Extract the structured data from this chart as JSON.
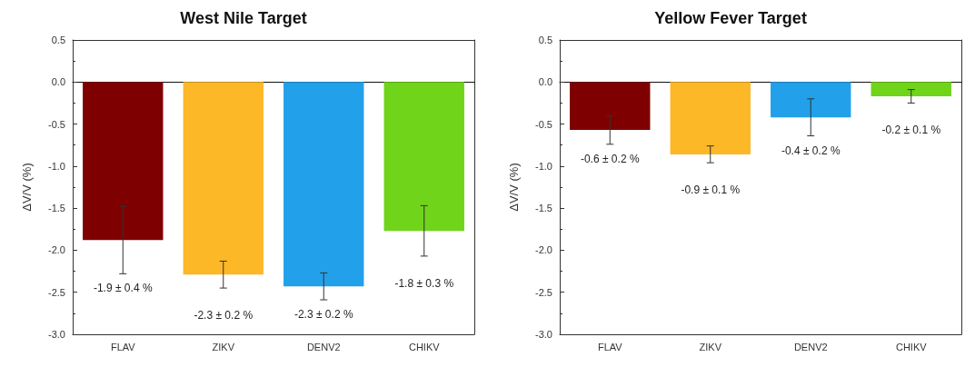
{
  "chart_data": [
    {
      "type": "bar",
      "title": "West Nile Target",
      "ylabel": "ΔV/V (%)",
      "categories": [
        "FLAV",
        "ZIKV",
        "DENV2",
        "CHIKV"
      ],
      "values": [
        -1.88,
        -2.29,
        -2.43,
        -1.77
      ],
      "colors": [
        "#7f0000",
        "#fdb827",
        "#22a0ea",
        "#6fd41a"
      ],
      "errors": [
        0.4,
        0.16,
        0.16,
        0.3
      ],
      "ylim": [
        -3,
        0.5
      ],
      "yticks": [
        {
          "value": -3,
          "label": "-3.0"
        },
        -2.5,
        {
          "value": -2,
          "label": "-2.0"
        },
        -1.5,
        {
          "value": -1,
          "label": "-1.0"
        },
        -0.5,
        {
          "value": 0,
          "label": "0.0"
        },
        0.5
      ],
      "annotations": [
        "-1.9 ± 0.4 %",
        "-2.3 ± 0.2 %",
        "-2.3 ± 0.2 %",
        "-1.8 ± 0.3 %"
      ]
    },
    {
      "type": "bar",
      "title": "Yellow Fever Target",
      "ylabel": "ΔV/V (%)",
      "categories": [
        "FLAV",
        "ZIKV",
        "DENV2",
        "CHIKV"
      ],
      "values": [
        -0.57,
        -0.86,
        -0.42,
        -0.17
      ],
      "colors": [
        "#7f0000",
        "#fdb827",
        "#22a0ea",
        "#6fd41a"
      ],
      "errors": [
        0.17,
        0.1,
        0.22,
        0.08
      ],
      "ylim": [
        -3,
        0.5
      ],
      "yticks": [
        {
          "value": -3,
          "label": "-3.0"
        },
        -2.5,
        {
          "value": -2,
          "label": "-2.0"
        },
        -1.5,
        {
          "value": -1,
          "label": "-1.0"
        },
        -0.5,
        {
          "value": 0,
          "label": "0.0"
        },
        0.5
      ],
      "annotations": [
        "-0.6 ± 0.2 %",
        "-0.9 ± 0.1 %",
        "-0.4 ± 0.2 %",
        "-0.2 ± 0.1 %"
      ]
    }
  ]
}
